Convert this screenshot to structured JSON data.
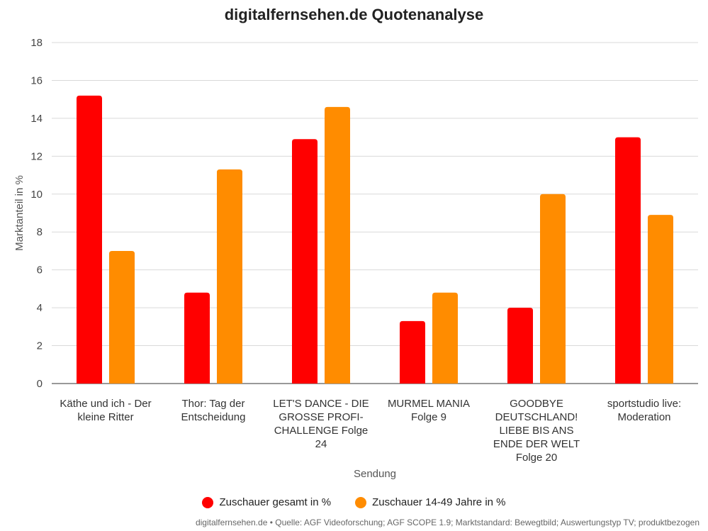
{
  "chart_data": {
    "type": "bar",
    "title": "digitalfernsehen.de Quotenanalyse",
    "xlabel": "Sendung",
    "ylabel": "Marktanteil in %",
    "ylim": [
      0,
      18
    ],
    "yticks": [
      0,
      2,
      4,
      6,
      8,
      10,
      12,
      14,
      16,
      18
    ],
    "grid": true,
    "legend_position": "bottom",
    "categories": [
      "Käthe und ich - Der kleine Ritter",
      "Thor: Tag der Entscheidung",
      "LET'S DANCE - DIE GROSSE PROFI-CHALLENGE Folge 24",
      "MURMEL MANIA Folge 9",
      "GOODBYE DEUTSCHLAND! LIEBE BIS ANS ENDE DER WELT Folge 20",
      "sportstudio live: Moderation"
    ],
    "category_lines": [
      [
        "Käthe und ich - Der",
        "kleine Ritter"
      ],
      [
        "Thor: Tag der",
        "Entscheidung"
      ],
      [
        "LET'S DANCE - DIE",
        "GROSSE PROFI-",
        "CHALLENGE Folge",
        "24"
      ],
      [
        "MURMEL MANIA",
        "Folge 9"
      ],
      [
        "GOODBYE",
        "DEUTSCHLAND!",
        "LIEBE BIS ANS",
        "ENDE DER WELT",
        "Folge 20"
      ],
      [
        "sportstudio live:",
        "Moderation"
      ]
    ],
    "series": [
      {
        "name": "Zuschauer gesamt in %",
        "color": "#ff0000",
        "values": [
          15.2,
          4.8,
          12.9,
          3.3,
          4.0,
          13.0
        ]
      },
      {
        "name": "Zuschauer 14-49 Jahre in %",
        "color": "#ff8c00",
        "values": [
          7.0,
          11.3,
          14.6,
          4.8,
          10.0,
          8.9
        ]
      }
    ]
  },
  "source_text": "digitalfernsehen.de • Quelle: AGF Videoforschung; AGF SCOPE 1.9; Marktstandard: Bewegtbild; Auswertungstyp TV; produktbezogen"
}
